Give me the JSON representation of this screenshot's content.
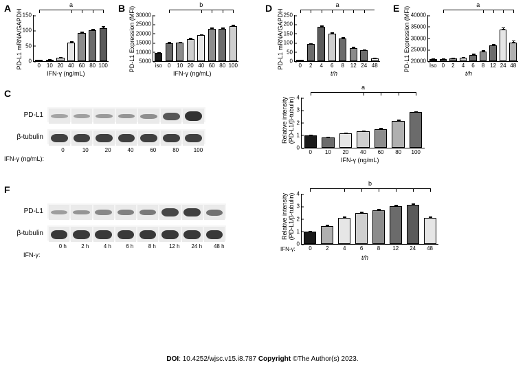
{
  "footer": {
    "doi_label": "DOI",
    "doi": ": 10.4252/wjsc.v15.i8.787 ",
    "copyright_label": "Copyright",
    "copyright": " ©The Author(s) 2023."
  },
  "panelA": {
    "label": "A",
    "ylabel": "PD-L1 mRNA/GAPDH",
    "xlabel": "IFN-γ (ng/mL)",
    "sig": "a",
    "ylim": 150,
    "yticks": [
      0,
      50,
      100,
      150
    ],
    "categories": [
      "0",
      "10",
      "20",
      "40",
      "60",
      "80",
      "100"
    ],
    "values": [
      2,
      4,
      12,
      60,
      92,
      100,
      108
    ],
    "errors": [
      1,
      1,
      2,
      4,
      5,
      6,
      6
    ],
    "colors": [
      "#1a1a1a",
      "#6b6b6b",
      "#cfcfcf",
      "#e6e6e6",
      "#8c8c8c",
      "#6b6b6b",
      "#5a5a5a"
    ]
  },
  "panelB": {
    "label": "B",
    "ylabel": "PD-L1 Expression (MFI)",
    "xlabel": "IFN-γ (ng/mL)",
    "sig": "b",
    "ylim": 30000,
    "ymin": 5000,
    "yticks": [
      5000,
      10000,
      15000,
      20000,
      25000,
      30000
    ],
    "categories": [
      "iso",
      "0",
      "10",
      "20",
      "40",
      "60",
      "80",
      "100"
    ],
    "values": [
      9500,
      14800,
      15000,
      17000,
      19000,
      22500,
      22600,
      24000
    ],
    "errors": [
      300,
      600,
      600,
      600,
      700,
      800,
      700,
      700
    ],
    "colors": [
      "#1a1a1a",
      "#6b6b6b",
      "#8c8c8c",
      "#cfcfcf",
      "#e6e6e6",
      "#8c8c8c",
      "#6b6b6b",
      "#cfcfcf"
    ]
  },
  "panelD": {
    "label": "D",
    "ylabel": "PD-L1 mRNA/GAPDH",
    "xlabel": "t/h",
    "sig": "a",
    "ylim": 250,
    "yticks": [
      0,
      50,
      100,
      150,
      200,
      250
    ],
    "categories": [
      "0",
      "2",
      "4",
      "6",
      "8",
      "12",
      "24",
      "48"
    ],
    "values": [
      2,
      92,
      185,
      148,
      122,
      72,
      58,
      14
    ],
    "errors": [
      1,
      6,
      9,
      8,
      7,
      5,
      4,
      2
    ],
    "colors": [
      "#1a1a1a",
      "#6b6b6b",
      "#5a5a5a",
      "#cfcfcf",
      "#6b6b6b",
      "#8c8c8c",
      "#6b6b6b",
      "#e6e6e6"
    ]
  },
  "panelE": {
    "label": "E",
    "ylabel": "PD-L1 Expression (MFI)",
    "xlabel": "t/h",
    "sig": "a",
    "ylim": 40000,
    "ymin": 20000,
    "yticks": [
      20000,
      25000,
      30000,
      35000,
      40000
    ],
    "categories": [
      "Iso",
      "0",
      "2",
      "4",
      "6",
      "8",
      "12",
      "24",
      "48"
    ],
    "values": [
      20800,
      21000,
      21200,
      21400,
      22800,
      24200,
      26800,
      33800,
      28200
    ],
    "errors": [
      300,
      300,
      300,
      300,
      500,
      700,
      700,
      900,
      700
    ],
    "colors": [
      "#1a1a1a",
      "#6b6b6b",
      "#8c8c8c",
      "#cfcfcf",
      "#6b6b6b",
      "#8c8c8c",
      "#6b6b6b",
      "#e6e6e6",
      "#b0b0b0"
    ]
  },
  "panelC": {
    "label": "C",
    "pdl1_label": "PD-L1",
    "tubulin_label": "β-tubulin",
    "row_label": "IFN-γ (ng/mL):",
    "lanes": [
      "0",
      "10",
      "20",
      "40",
      "60",
      "80",
      "100"
    ],
    "pdl1_intensity": [
      0.15,
      0.18,
      0.22,
      0.25,
      0.3,
      0.7,
      0.95
    ],
    "tubulin_intensity": [
      0.85,
      0.85,
      0.85,
      0.85,
      0.85,
      0.85,
      0.85
    ],
    "quant": {
      "ylabel_line1": "Relative intensity",
      "ylabel_line2": "(PD-L1/β-tubulin)",
      "xlabel": "IFN-γ (ng/mL)",
      "sig": "a",
      "ylim": 4,
      "yticks": [
        0,
        1,
        2,
        3,
        4
      ],
      "categories": [
        "0",
        "10",
        "20",
        "40",
        "60",
        "80",
        "100"
      ],
      "values": [
        1.0,
        0.85,
        1.15,
        1.3,
        1.5,
        2.15,
        2.85
      ],
      "errors": [
        0.05,
        0.05,
        0.06,
        0.07,
        0.07,
        0.08,
        0.08
      ],
      "colors": [
        "#1a1a1a",
        "#6b6b6b",
        "#e6e6e6",
        "#cfcfcf",
        "#8c8c8c",
        "#b0b0b0",
        "#6b6b6b"
      ]
    }
  },
  "panelF": {
    "label": "F",
    "pdl1_label": "PD-L1",
    "tubulin_label": "β-tubulin",
    "row_label": "IFN-γ:",
    "lanes": [
      "0 h",
      "2 h",
      "4 h",
      "6 h",
      "8 h",
      "12 h",
      "24 h",
      "48 h"
    ],
    "pdl1_intensity": [
      0.2,
      0.25,
      0.35,
      0.4,
      0.45,
      0.8,
      0.85,
      0.5
    ],
    "tubulin_intensity": [
      0.9,
      0.9,
      0.9,
      0.9,
      0.9,
      0.9,
      0.9,
      0.9
    ],
    "quant": {
      "ylabel_line1": "Relative intensity",
      "ylabel_line2": "(PD-L1/β-tubulin)",
      "xlabel_prefix": "IFN-γ:",
      "xlabel": "t/h",
      "sig": "b",
      "ylim": 4,
      "yticks": [
        0,
        1,
        2,
        3,
        4
      ],
      "categories": [
        "0",
        "2",
        "4",
        "6",
        "8",
        "12",
        "24",
        "48"
      ],
      "values": [
        1.0,
        1.45,
        2.1,
        2.45,
        2.7,
        3.0,
        3.1,
        2.1
      ],
      "errors": [
        0.05,
        0.08,
        0.1,
        0.12,
        0.12,
        0.14,
        0.14,
        0.1
      ],
      "colors": [
        "#1a1a1a",
        "#b0b0b0",
        "#e6e6e6",
        "#cfcfcf",
        "#8c8c8c",
        "#6b6b6b",
        "#5a5a5a",
        "#e6e6e6"
      ]
    }
  }
}
